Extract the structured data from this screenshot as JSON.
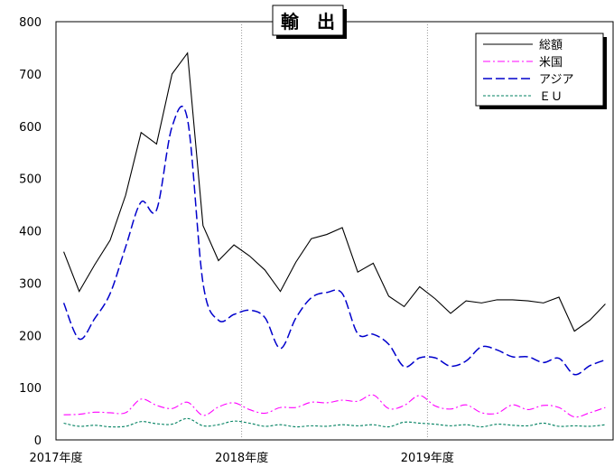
{
  "chart_data": {
    "type": "line",
    "title": "輸　出",
    "xlabel": "",
    "ylabel": "",
    "ylim": [
      0,
      800
    ],
    "yticks": [
      0,
      100,
      200,
      300,
      400,
      500,
      600,
      700,
      800
    ],
    "x_tick_labels": [
      "2017年度",
      "2018年度",
      "2019年度"
    ],
    "months_per_year": 12,
    "grid": "vertical dotted lines at fiscal year boundaries",
    "legend": "top-right",
    "series": [
      {
        "name": "総額",
        "color": "#000000",
        "dash": "solid",
        "values": [
          360,
          284,
          335,
          382,
          468,
          588,
          566,
          700,
          740,
          410,
          343,
          373,
          352,
          325,
          284,
          340,
          385,
          393,
          406,
          321,
          338,
          275,
          255,
          293,
          270,
          242,
          266,
          262,
          268,
          268,
          266,
          262,
          273,
          208,
          229,
          260
        ]
      },
      {
        "name": "米国",
        "color": "#ff00ff",
        "dash": "dashdot",
        "values": [
          48,
          49,
          53,
          52,
          52,
          78,
          66,
          60,
          72,
          47,
          63,
          71,
          58,
          51,
          62,
          62,
          72,
          71,
          76,
          74,
          86,
          60,
          66,
          85,
          65,
          59,
          67,
          52,
          51,
          67,
          58,
          66,
          62,
          44,
          52,
          62
        ]
      },
      {
        "name": "アジア",
        "color": "#0000cc",
        "dash": "dashed",
        "values": [
          262,
          193,
          232,
          280,
          369,
          455,
          440,
          599,
          613,
          300,
          229,
          240,
          248,
          234,
          175,
          233,
          272,
          282,
          280,
          203,
          202,
          183,
          140,
          157,
          157,
          141,
          151,
          178,
          172,
          159,
          159,
          148,
          156,
          125,
          142,
          153
        ]
      },
      {
        "name": "ＥＵ",
        "color": "#008060",
        "dash": "dotted",
        "values": [
          32,
          26,
          28,
          25,
          26,
          35,
          31,
          30,
          41,
          27,
          29,
          36,
          32,
          26,
          29,
          25,
          27,
          26,
          29,
          27,
          29,
          25,
          34,
          32,
          30,
          27,
          29,
          25,
          30,
          28,
          27,
          32,
          26,
          27,
          26,
          29
        ]
      }
    ]
  }
}
